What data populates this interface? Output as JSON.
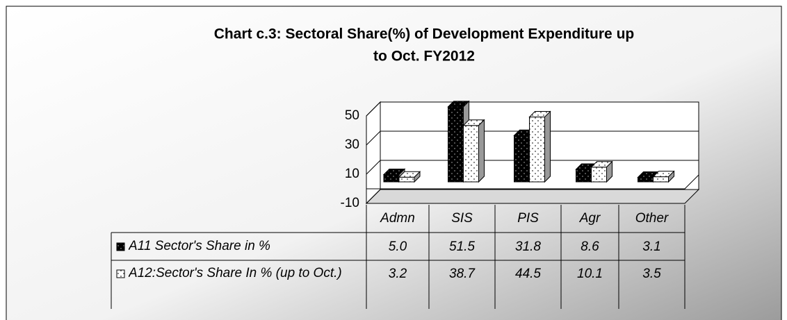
{
  "chart_data": {
    "type": "bar3d",
    "title": "Chart c.3: Sectoral Share(%) of Development Expenditure up",
    "subtitle": "to Oct.  FY2012",
    "categories": [
      "Admn",
      "SIS",
      "PIS",
      "Agr",
      "Other"
    ],
    "series": [
      {
        "name": "A11 Sector's Share in %",
        "color": "#000000",
        "values": [
          5.0,
          51.5,
          31.8,
          8.6,
          3.1
        ],
        "value_labels": [
          "5.0",
          "51.5",
          "31.8",
          "8.6",
          "3.1"
        ]
      },
      {
        "name": "A12:Sector's Share In % (up to Oct.)",
        "color": "#ffffff",
        "values": [
          3.2,
          38.7,
          44.5,
          10.1,
          3.5
        ],
        "value_labels": [
          "3.2",
          "38.7",
          "44.5",
          "10.1",
          "3.5"
        ]
      }
    ],
    "ylim": [
      -10,
      50
    ],
    "yticks": [
      -10,
      10,
      30,
      50
    ],
    "grid": true
  }
}
